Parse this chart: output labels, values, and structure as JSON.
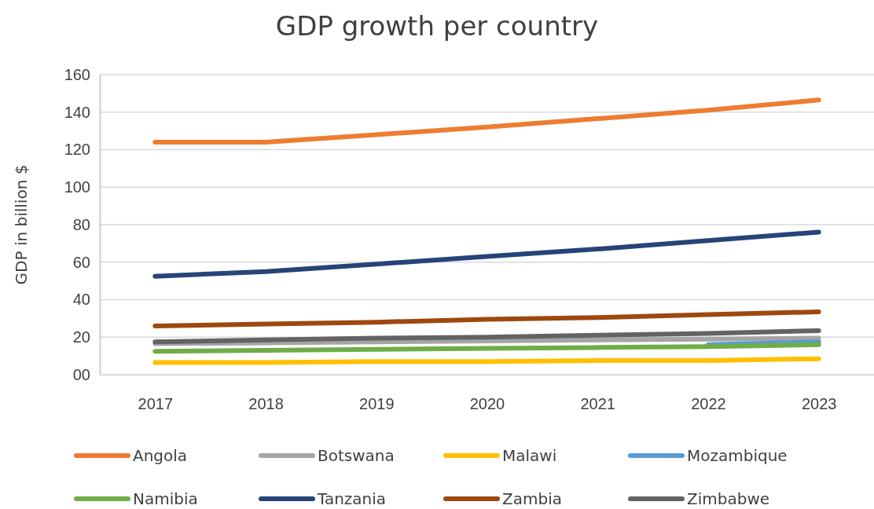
{
  "chart_data": {
    "type": "line",
    "title": "GDP growth per country",
    "ylabel": "GDP in billion $",
    "categories": [
      "2017",
      "2018",
      "2019",
      "2020",
      "2021",
      "2022",
      "2023"
    ],
    "series": [
      {
        "name": "Angola",
        "color": "#ed7d31",
        "values": [
          124,
          124,
          128,
          132,
          136.5,
          141,
          146.5
        ]
      },
      {
        "name": "Botswana",
        "color": "#a5a5a5",
        "values": [
          16.5,
          17,
          17.5,
          18,
          18.5,
          19,
          19.5
        ]
      },
      {
        "name": "Malawi",
        "color": "#ffc000",
        "values": [
          6.5,
          6.5,
          7,
          7,
          7.5,
          7.5,
          8.5
        ]
      },
      {
        "name": "Mozambique",
        "color": "#5b9bd5",
        "values": [
          null,
          null,
          null,
          null,
          null,
          16,
          17.5
        ]
      },
      {
        "name": "Namibia",
        "color": "#70ad47",
        "values": [
          12.5,
          13,
          13.5,
          14,
          14.5,
          15,
          16
        ]
      },
      {
        "name": "Tanzania",
        "color": "#264478",
        "values": [
          52.5,
          55,
          59,
          63,
          67,
          71.5,
          76
        ]
      },
      {
        "name": "Zambia",
        "color": "#9e480e",
        "values": [
          26,
          27,
          28,
          29.5,
          30.5,
          32,
          33.5
        ]
      },
      {
        "name": "Zimbabwe",
        "color": "#636363",
        "values": [
          17.5,
          18.5,
          19.5,
          20,
          21,
          22,
          23.5
        ]
      }
    ],
    "ylim": [
      0,
      160
    ],
    "yticks": [
      {
        "value": 0,
        "label": "00"
      },
      20,
      40,
      60,
      80,
      100,
      120,
      140,
      160
    ],
    "grid": "y",
    "legend": "bottom",
    "marker": "none",
    "line_style": "solid"
  }
}
